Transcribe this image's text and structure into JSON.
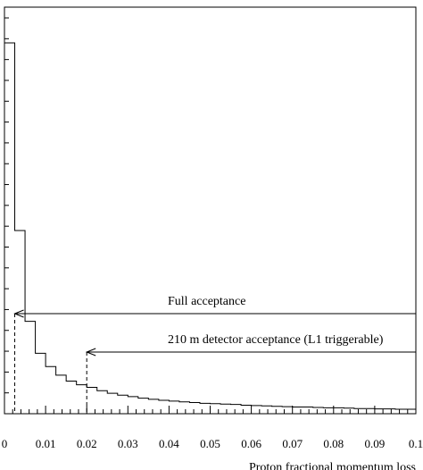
{
  "chart_data": {
    "type": "histogram",
    "title": "",
    "xlabel": "Proton fractional momentum loss",
    "ylabel": "",
    "xlim": [
      0,
      0.1
    ],
    "x_ticks": [
      "0",
      "0.01",
      "0.02",
      "0.03",
      "0.04",
      "0.05",
      "0.06",
      "0.07",
      "0.08",
      "0.09",
      "0.1"
    ],
    "grid": false,
    "bin_width": 0.0025,
    "values": [
      1.0,
      0.494,
      0.249,
      0.163,
      0.127,
      0.104,
      0.088,
      0.078,
      0.071,
      0.062,
      0.055,
      0.05,
      0.046,
      0.042,
      0.039,
      0.036,
      0.034,
      0.032,
      0.03,
      0.028,
      0.027,
      0.026,
      0.025,
      0.023,
      0.022,
      0.021,
      0.02,
      0.019,
      0.018,
      0.018,
      0.017,
      0.016,
      0.016,
      0.015,
      0.014,
      0.014,
      0.013,
      0.013,
      0.012,
      0.012
    ],
    "annotations": [
      {
        "text": "Full acceptance",
        "x_start": 0.0025
      },
      {
        "text": "210 m detector acceptance (L1 triggerable)",
        "x_start": 0.02
      }
    ]
  }
}
